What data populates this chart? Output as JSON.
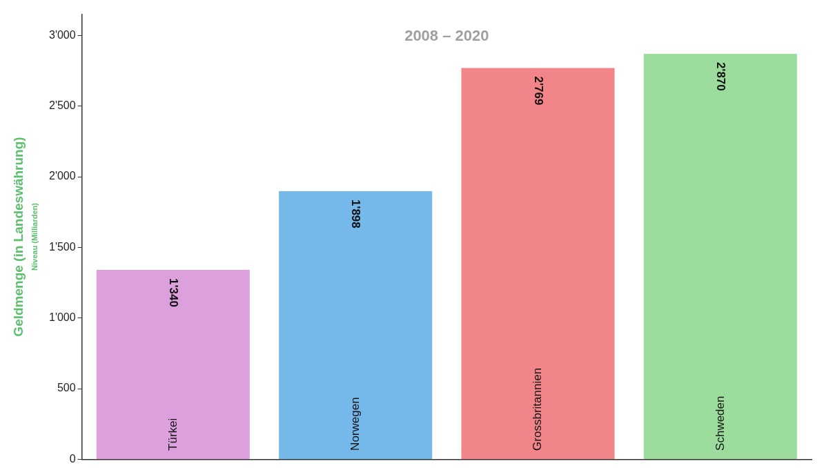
{
  "chart_data": {
    "type": "bar",
    "title": "2008 – 2020",
    "ylabel": "Geldmenge (in Landeswährung)\nNiveau (Milliarden)",
    "categories": [
      "Türkei",
      "Norwegen",
      "Grossbritannien",
      "Schweden"
    ],
    "values": [
      1340,
      1898,
      2769,
      2870
    ],
    "colors": [
      "#dca0dc",
      "#74b9ea",
      "#f2858a",
      "#9cdc9c"
    ],
    "value_labels": [
      "1'340",
      "1'898",
      "2'769",
      "2'870"
    ],
    "ylim": [
      0,
      3150
    ],
    "yticks": [
      0,
      500,
      {
        "value": 1000,
        "label": "1'000"
      },
      {
        "value": 1500,
        "label": "1'500"
      },
      {
        "value": 2000,
        "label": "2'000"
      },
      {
        "value": 2500,
        "label": "2'500"
      },
      {
        "value": 3000,
        "label": "3'000"
      }
    ],
    "grid": false,
    "legend": false
  }
}
